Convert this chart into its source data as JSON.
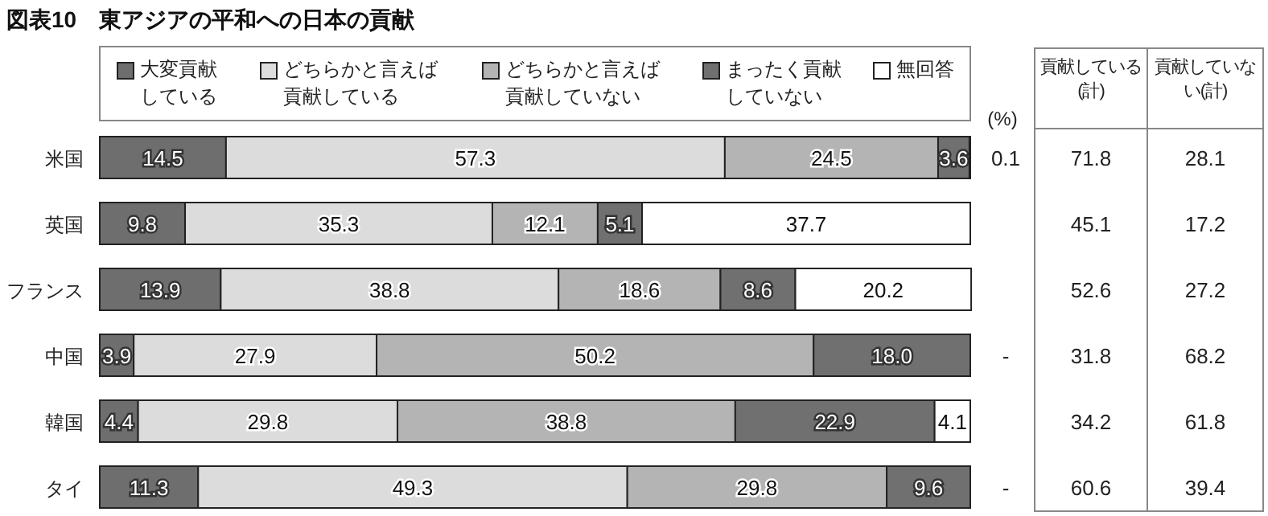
{
  "chart_data": [
    {
      "type": "bar",
      "orientation": "horizontal",
      "stacked": true,
      "title": "図表10　東アジアの平和への日本の貢献",
      "legend": "top",
      "xlim": [
        0,
        100
      ],
      "annotations": [
        "(%)"
      ],
      "categories": [
        "米国",
        "英国",
        "フランス",
        "中国",
        "韓国",
        "タイ"
      ],
      "series": [
        {
          "name": "大変貢献している",
          "color": "#6e6e6e",
          "values": [
            14.5,
            9.8,
            13.9,
            3.9,
            4.4,
            11.3
          ],
          "value_labels": [
            "14.5",
            "9.8",
            "13.9",
            "3.9",
            "4.4",
            "11.3"
          ]
        },
        {
          "name": "どちらかと言えば貢献している",
          "color": "#dcdcdc",
          "values": [
            57.3,
            35.3,
            38.8,
            27.9,
            29.8,
            49.3
          ],
          "value_labels": [
            "57.3",
            "35.3",
            "38.8",
            "27.9",
            "29.8",
            "49.3"
          ]
        },
        {
          "name": "どちらかと言えば貢献していない",
          "color": "#b4b4b4",
          "values": [
            24.5,
            12.1,
            18.6,
            50.2,
            38.8,
            29.8
          ],
          "value_labels": [
            "24.5",
            "12.1",
            "18.6",
            "50.2",
            "38.8",
            "29.8"
          ]
        },
        {
          "name": "まったく貢献していない",
          "color": "#707070",
          "values": [
            3.6,
            5.1,
            8.6,
            18.0,
            22.9,
            9.6
          ],
          "value_labels": [
            "3.6",
            "5.1",
            "8.6",
            "18.0",
            "22.9",
            "9.6"
          ]
        },
        {
          "name": "無回答",
          "color": "#ffffff",
          "values": [
            0.1,
            37.7,
            20.2,
            null,
            4.1,
            null
          ],
          "value_labels": [
            "0.1",
            "37.7",
            "20.2",
            "-",
            "4.1",
            "-"
          ]
        }
      ]
    },
    {
      "type": "other",
      "annotations": [
        "貢献している(計)",
        "貢献していない(計)",
        "71.8",
        "28.1",
        "45.1",
        "17.2",
        "52.6",
        "27.2",
        "31.8",
        "68.2",
        "34.2",
        "61.8",
        "60.6",
        "39.4"
      ]
    }
  ]
}
